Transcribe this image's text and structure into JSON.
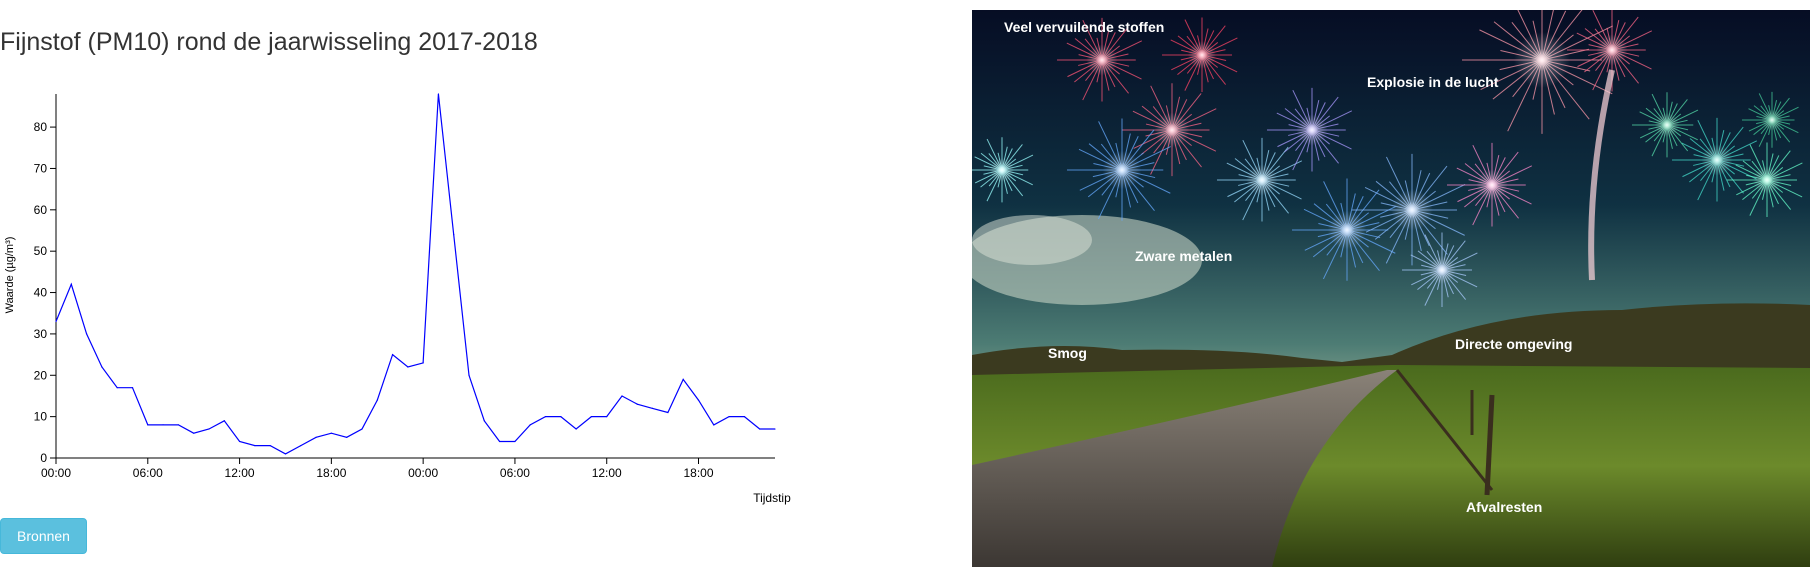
{
  "chart_title": "Fijnstof (PM10) rond de jaarwisseling 2017-2018",
  "chart_data": {
    "type": "line",
    "title": "Fijnstof (PM10) rond de jaarwisseling 2017-2018",
    "xlabel": "Tijdstip",
    "ylabel": "Waarde (µg/m³)",
    "ylim": [
      0,
      88
    ],
    "x_ticks": [
      "00:00",
      "06:00",
      "12:00",
      "18:00",
      "00:00",
      "06:00",
      "12:00",
      "18:00"
    ],
    "y_ticks": [
      0,
      10,
      20,
      30,
      40,
      50,
      60,
      70,
      80
    ],
    "grid": false,
    "x": [
      0,
      1,
      2,
      3,
      4,
      5,
      6,
      7,
      8,
      9,
      10,
      11,
      12,
      13,
      14,
      15,
      16,
      17,
      18,
      19,
      20,
      21,
      22,
      23,
      24,
      25,
      26,
      27,
      28,
      29,
      30,
      31,
      32,
      33,
      34,
      35,
      36,
      37,
      38,
      39,
      40,
      41,
      42,
      43,
      44,
      45,
      46,
      47
    ],
    "x_unit": "hours since first 00:00",
    "series": [
      {
        "color": "#0000ff",
        "values": [
          33,
          42,
          30,
          22,
          17,
          17,
          8,
          8,
          8,
          6,
          7,
          9,
          4,
          3,
          3,
          1,
          3,
          5,
          6,
          5,
          7,
          14,
          25,
          22,
          23,
          88,
          54,
          20,
          9,
          4,
          4,
          8,
          10,
          10,
          7,
          10,
          10,
          15,
          13,
          12,
          11,
          19,
          14,
          8,
          10,
          10,
          7,
          7
        ]
      }
    ]
  },
  "buttons": {
    "bronnen": "Bronnen"
  },
  "image_labels": [
    "Veel vervuilende stoffen",
    "Explosie in de lucht",
    "Zware metalen",
    "Smog",
    "Directe omgeving",
    "Afvalresten"
  ]
}
